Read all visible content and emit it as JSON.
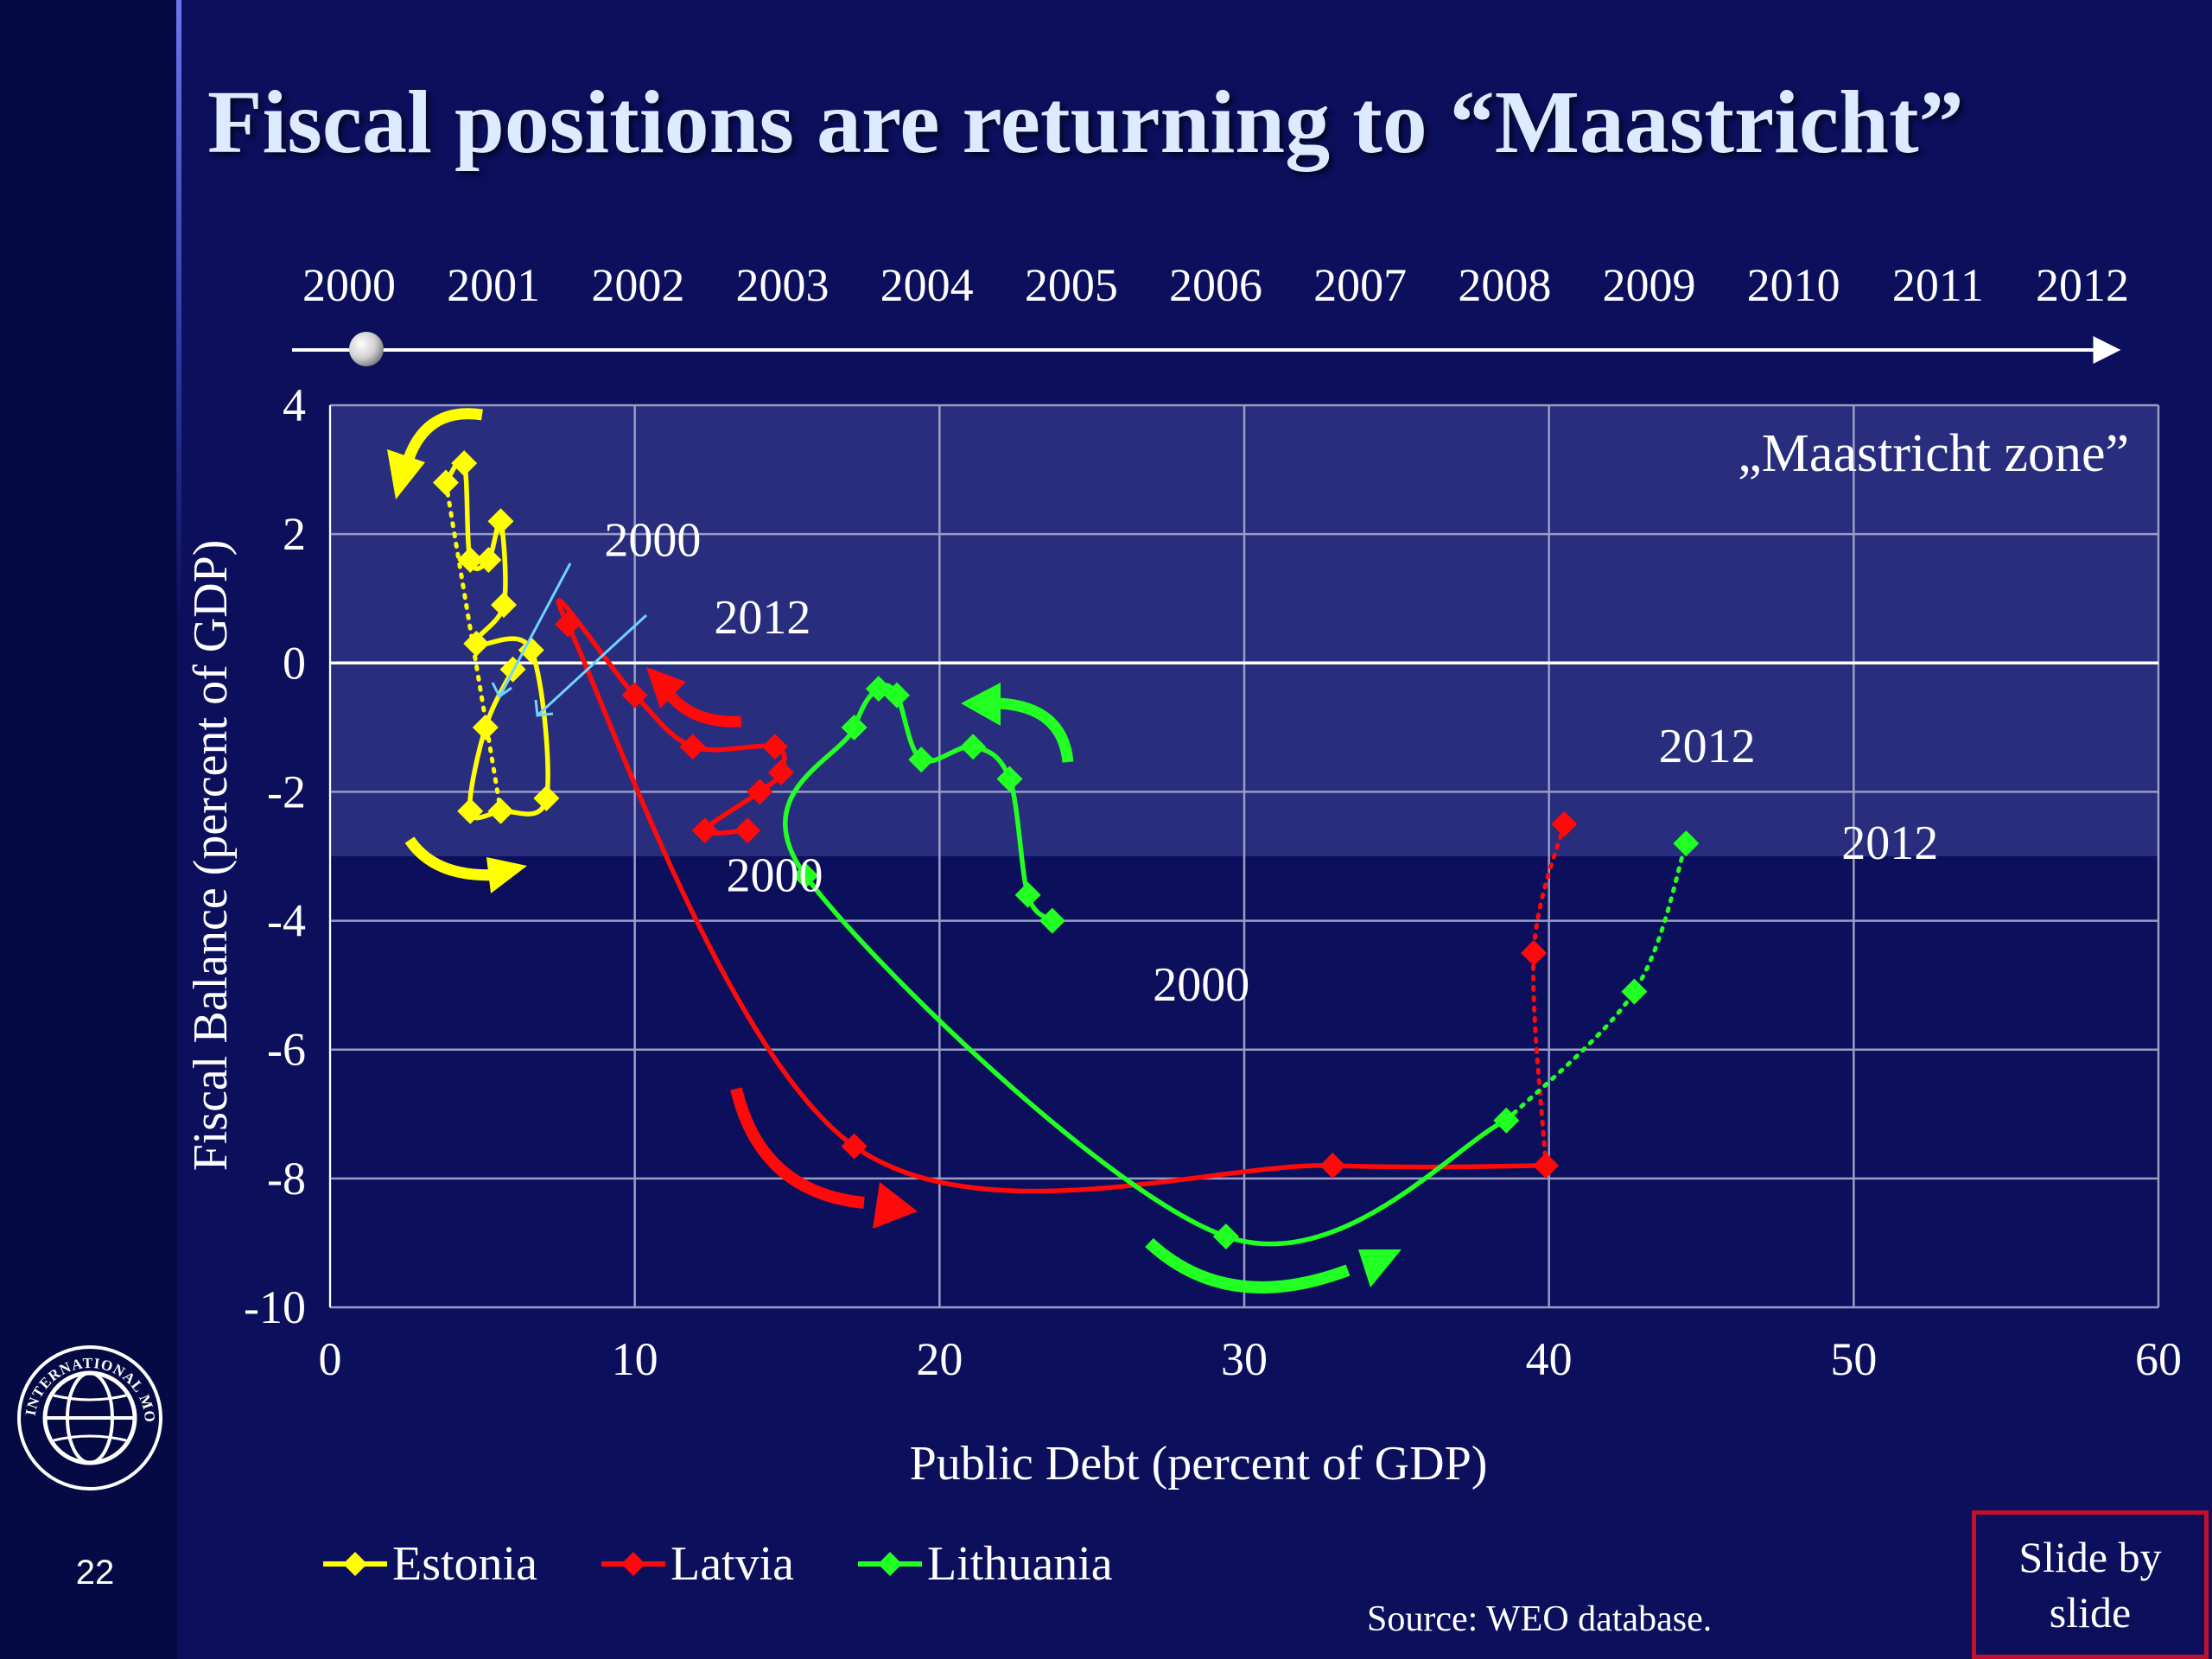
{
  "slide": {
    "title": "Fiscal positions are returning to “Maastricht”",
    "page_number": "22",
    "source_note": "Source: WEO database.",
    "slide_by_slide_label": "Slide by slide",
    "logo_text": "INTERNATIONAL MONETARY FUND"
  },
  "timeline": {
    "years": [
      "2000",
      "2001",
      "2002",
      "2003",
      "2004",
      "2005",
      "2006",
      "2007",
      "2008",
      "2009",
      "2010",
      "2011",
      "2012"
    ],
    "selected_year": "2000"
  },
  "colors": {
    "background": "#0b0f5c",
    "estonia": "#ffff00",
    "latvia": "#ff0a0a",
    "lithuania": "#22ff22",
    "zone": "#2a2f80",
    "callout": "#6fd3ff"
  },
  "chart_data": {
    "type": "scatter",
    "xlabel": "Public Debt (percent of GDP)",
    "ylabel": "Fiscal Balance (percent of GDP)",
    "xlim": [
      0,
      60
    ],
    "ylim": [
      -10,
      4
    ],
    "xticks": [
      0,
      10,
      20,
      30,
      40,
      50,
      60
    ],
    "yticks": [
      4,
      2,
      0,
      -2,
      -4,
      -6,
      -8,
      -10
    ],
    "grid": true,
    "legend_position": "bottom-left",
    "zone": {
      "label": "„Maastricht zone”",
      "y_from": -3,
      "y_to": 4
    },
    "series": [
      {
        "name": "Estonia",
        "color": "#ffff00",
        "points": [
          [
            6.0,
            -0.1
          ],
          [
            5.1,
            -1.0
          ],
          [
            4.6,
            -2.3
          ],
          [
            5.6,
            -2.3
          ],
          [
            7.1,
            -2.1
          ],
          [
            6.6,
            0.2
          ],
          [
            4.8,
            0.3
          ],
          [
            5.7,
            0.9
          ],
          [
            5.6,
            2.2
          ],
          [
            5.2,
            1.6
          ],
          [
            4.6,
            1.6
          ],
          [
            4.4,
            3.1
          ],
          [
            3.8,
            2.8
          ]
        ],
        "projection": [
          [
            3.8,
            2.8
          ],
          [
            5.6,
            -2.3
          ]
        ]
      },
      {
        "name": "Latvia",
        "color": "#ff0a0a",
        "points": [
          [
            13.7,
            -2.6
          ],
          [
            12.3,
            -2.6
          ],
          [
            14.1,
            -2.0
          ],
          [
            14.8,
            -1.7
          ],
          [
            14.6,
            -1.3
          ],
          [
            11.9,
            -1.3
          ],
          [
            10.0,
            -0.5
          ],
          [
            7.8,
            0.6
          ],
          [
            17.2,
            -7.5
          ],
          [
            32.9,
            -7.8
          ],
          [
            39.9,
            -7.8
          ]
        ],
        "projection": [
          [
            39.9,
            -7.8
          ],
          [
            39.5,
            -4.5
          ],
          [
            40.5,
            -2.5
          ]
        ]
      },
      {
        "name": "Lithuania",
        "color": "#22ff22",
        "points": [
          [
            23.7,
            -4.0
          ],
          [
            22.9,
            -3.6
          ],
          [
            22.3,
            -1.8
          ],
          [
            21.1,
            -1.3
          ],
          [
            19.4,
            -1.5
          ],
          [
            18.6,
            -0.5
          ],
          [
            18.0,
            -0.4
          ],
          [
            17.2,
            -1.0
          ],
          [
            15.6,
            -3.3
          ],
          [
            29.4,
            -8.9
          ],
          [
            38.6,
            -7.1
          ]
        ],
        "projection": [
          [
            38.6,
            -7.1
          ],
          [
            42.8,
            -5.1
          ],
          [
            44.5,
            -2.8
          ]
        ]
      }
    ],
    "annotations": [
      {
        "text": "2000",
        "x": 9.0,
        "y": 1.9
      },
      {
        "text": "2012",
        "x": 12.6,
        "y": 0.7
      },
      {
        "text": "2000",
        "x": 13.0,
        "y": -3.3
      },
      {
        "text": "2000",
        "x": 27.0,
        "y": -5.0
      },
      {
        "text": "2012",
        "x": 43.6,
        "y": -1.3
      },
      {
        "text": "2012",
        "x": 49.6,
        "y": -2.8
      }
    ]
  }
}
